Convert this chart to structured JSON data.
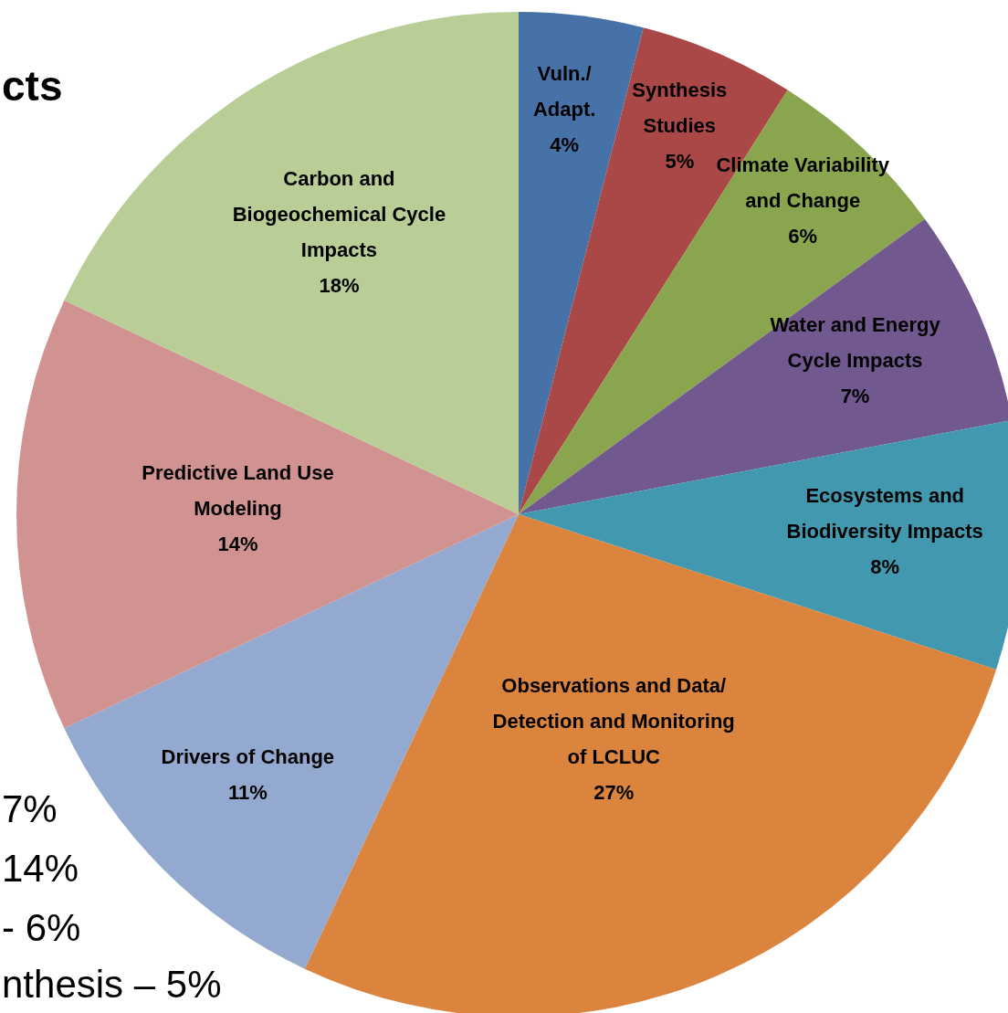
{
  "chart_data": {
    "type": "pie",
    "categories": [
      "Vuln./ Adapt.",
      "Synthesis Studies",
      "Climate Variability and Change",
      "Water and Energy Cycle Impacts",
      "Ecosystems and Biodiversity Impacts",
      "Observations and Data/ Detection and Monitoring of LCLUC",
      "Drivers of Change",
      "Predictive Land Use Modeling",
      "Carbon and Biogeochemical Cycle Impacts"
    ],
    "values": [
      4,
      5,
      6,
      7,
      8,
      27,
      11,
      14,
      18
    ],
    "colors": [
      "#4672a8",
      "#a94846",
      "#89a54e",
      "#71588f",
      "#4198af",
      "#db843d",
      "#93a9cf",
      "#d19392",
      "#b9cd96"
    ],
    "value_labels": [
      "4%",
      "5%",
      "6%",
      "7%",
      "8%",
      "27%",
      "11%",
      "14%",
      "18%"
    ],
    "annotations": [
      "cts",
      "7%",
      "14%",
      "- 6%",
      "nthesis – 5%"
    ]
  }
}
